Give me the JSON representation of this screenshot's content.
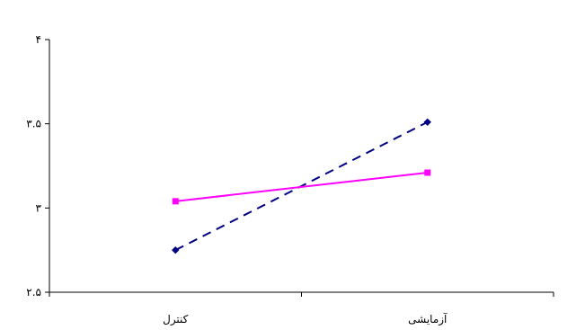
{
  "chart_data": {
    "type": "line",
    "categories": [
      "کنترل",
      "آزمایشی"
    ],
    "y_tick_labels": [
      "۲.۵",
      "۳",
      "۳.۵",
      "۴"
    ],
    "y_ticks": [
      2.5,
      3.0,
      3.5,
      4.0
    ],
    "ylim": [
      2.5,
      4.0
    ],
    "grid": false,
    "legend": "none",
    "series": [
      {
        "values": [
          2.75,
          3.51
        ],
        "color": "#000080",
        "line_style": "dashed",
        "marker": "diamond"
      },
      {
        "values": [
          3.04,
          3.21
        ],
        "color": "#ff00ff",
        "line_style": "solid",
        "marker": "square"
      }
    ]
  }
}
